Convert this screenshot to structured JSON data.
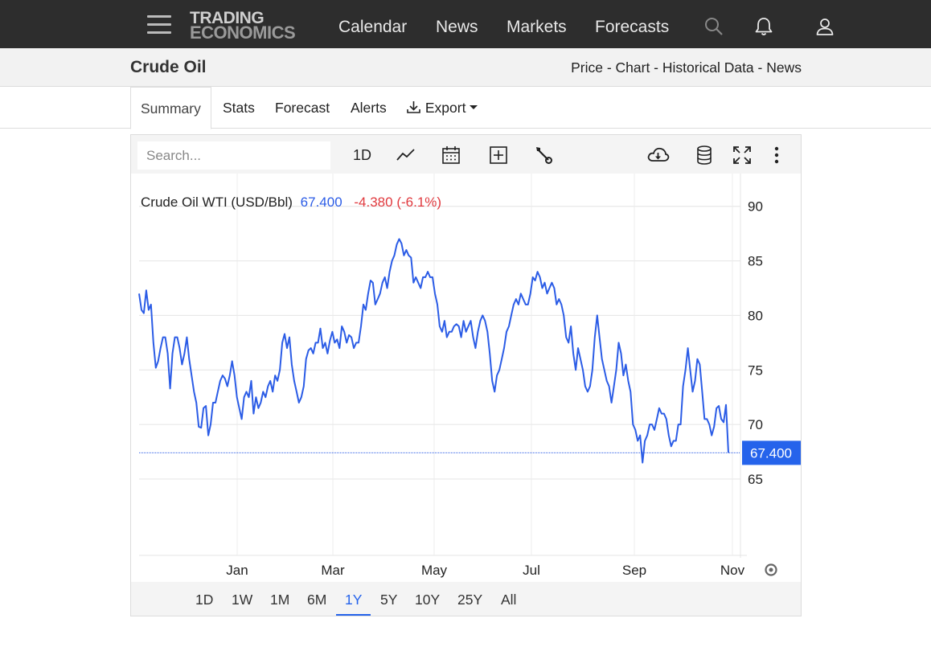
{
  "brand": {
    "line1": "TRADING",
    "line2": "ECONOMICS"
  },
  "nav": {
    "items": [
      "Calendar",
      "News",
      "Markets",
      "Forecasts"
    ]
  },
  "icons": {
    "menu": "hamburger-menu-icon",
    "search": "search-icon",
    "bell": "bell-icon",
    "user": "user-icon"
  },
  "page": {
    "title": "Crude Oil",
    "links": [
      "Price",
      "Chart",
      "Historical Data",
      "News"
    ],
    "separator": " - "
  },
  "tabs": {
    "summary": "Summary",
    "stats": "Stats",
    "forecast": "Forecast",
    "alerts": "Alerts",
    "export": "Export"
  },
  "toolbar": {
    "search_placeholder": "Search...",
    "interval": "1D"
  },
  "ranges": {
    "items": [
      "1D",
      "1W",
      "1M",
      "6M",
      "1Y",
      "5Y",
      "10Y",
      "25Y",
      "All"
    ],
    "active": "1Y"
  },
  "colors": {
    "line": "#2b5ce6",
    "negative": "#e0393e",
    "accent": "#2563eb",
    "topbar": "#2d2d2d"
  },
  "chart_data": {
    "type": "line",
    "legend": {
      "name": "Crude Oil WTI (USD/Bbl)",
      "last": "67.400",
      "change": "-4.380 (-6.1%)"
    },
    "last_value": 67.4,
    "last_label": "67.400",
    "ylim": [
      58,
      93
    ],
    "y_ticks": [
      90,
      85,
      80,
      75,
      70,
      65
    ],
    "x_tick_labels": [
      "Jan",
      "Mar",
      "May",
      "Jul",
      "Sep",
      "Nov"
    ],
    "grid": true,
    "series": [
      {
        "values": [
          82,
          80.5,
          80.2,
          82.3,
          80.5,
          81.0,
          77.5,
          75.2,
          75.8,
          77.0,
          78.0,
          78.0,
          76.5,
          73.3,
          76.5,
          78.0,
          78.0,
          77.0,
          75.5,
          76.5,
          78.0,
          76.0,
          74.5,
          73.0,
          72.0,
          69.8,
          69.7,
          71.5,
          71.7,
          69.0,
          70.0,
          72.0,
          72.0,
          73.0,
          74.0,
          74.5,
          74.2,
          73.5,
          74.5,
          75.8,
          74.5,
          72.5,
          71.5,
          70.5,
          72.5,
          73.0,
          72.5,
          74.0,
          71.0,
          72.5,
          71.5,
          72.0,
          73.0,
          72.5,
          73.5,
          74.0,
          73.0,
          74.5,
          74.0,
          75.0,
          77.5,
          78.3,
          77.0,
          78.0,
          75.5,
          74.0,
          73.0,
          72.0,
          72.5,
          73.5,
          76.0,
          76.8,
          77.0,
          76.5,
          77.5,
          77.5,
          78.8,
          77.0,
          77.5,
          76.5,
          77.7,
          78.5,
          77.5,
          77.8,
          77.0,
          79.0,
          78.5,
          77.5,
          78.2,
          78.0,
          77.0,
          77.5,
          77.5,
          79.0,
          81.0,
          80.5,
          82.0,
          83.2,
          83.0,
          81.0,
          81.5,
          82.0,
          83.0,
          83.5,
          82.5,
          84.0,
          85.0,
          85.5,
          86.5,
          87.0,
          86.6,
          85.5,
          86.0,
          85.5,
          85.3,
          83.0,
          83.5,
          83.0,
          82.5,
          83.5,
          83.5,
          84.0,
          83.5,
          83.5,
          82.0,
          81.0,
          79.0,
          78.5,
          79.5,
          78.0,
          78.5,
          78.5,
          79.0,
          79.2,
          79.0,
          78.0,
          79.5,
          78.5,
          79.0,
          79.5,
          78.0,
          77.0,
          78.5,
          79.5,
          80.0,
          79.5,
          78.5,
          76.5,
          74.0,
          73.0,
          74.5,
          75.0,
          76.0,
          77.0,
          78.5,
          79.0,
          80.0,
          81.0,
          81.5,
          81.0,
          82.0,
          81.5,
          81.0,
          81.0,
          82.0,
          83.5,
          83.2,
          84.0,
          83.5,
          82.5,
          83.0,
          82.0,
          82.5,
          83.0,
          82.5,
          81.0,
          81.5,
          81.0,
          80.0,
          78.0,
          77.5,
          79.0,
          76.5,
          75.0,
          77.0,
          76.0,
          75.0,
          73.5,
          73.0,
          73.5,
          75.0,
          78.0,
          80.0,
          78.0,
          76.0,
          75.0,
          74.0,
          73.5,
          72.0,
          73.5,
          75.0,
          77.5,
          76.5,
          74.5,
          75.5,
          74.0,
          73.0,
          70.0,
          69.5,
          68.5,
          69.0,
          66.5,
          68.5,
          69.0,
          70.0,
          70.0,
          69.5,
          70.5,
          71.5,
          71.0,
          71.0,
          70.5,
          69.0,
          68.0,
          68.5,
          68.5,
          70.0,
          70.0,
          73.5,
          75.0,
          77.0,
          75.0,
          73.0,
          74.0,
          76.0,
          75.5,
          73.0,
          70.5,
          70.5,
          70.0,
          69.0,
          69.8,
          71.5,
          71.7,
          70.5,
          70.2,
          71.8,
          67.4
        ]
      }
    ]
  }
}
